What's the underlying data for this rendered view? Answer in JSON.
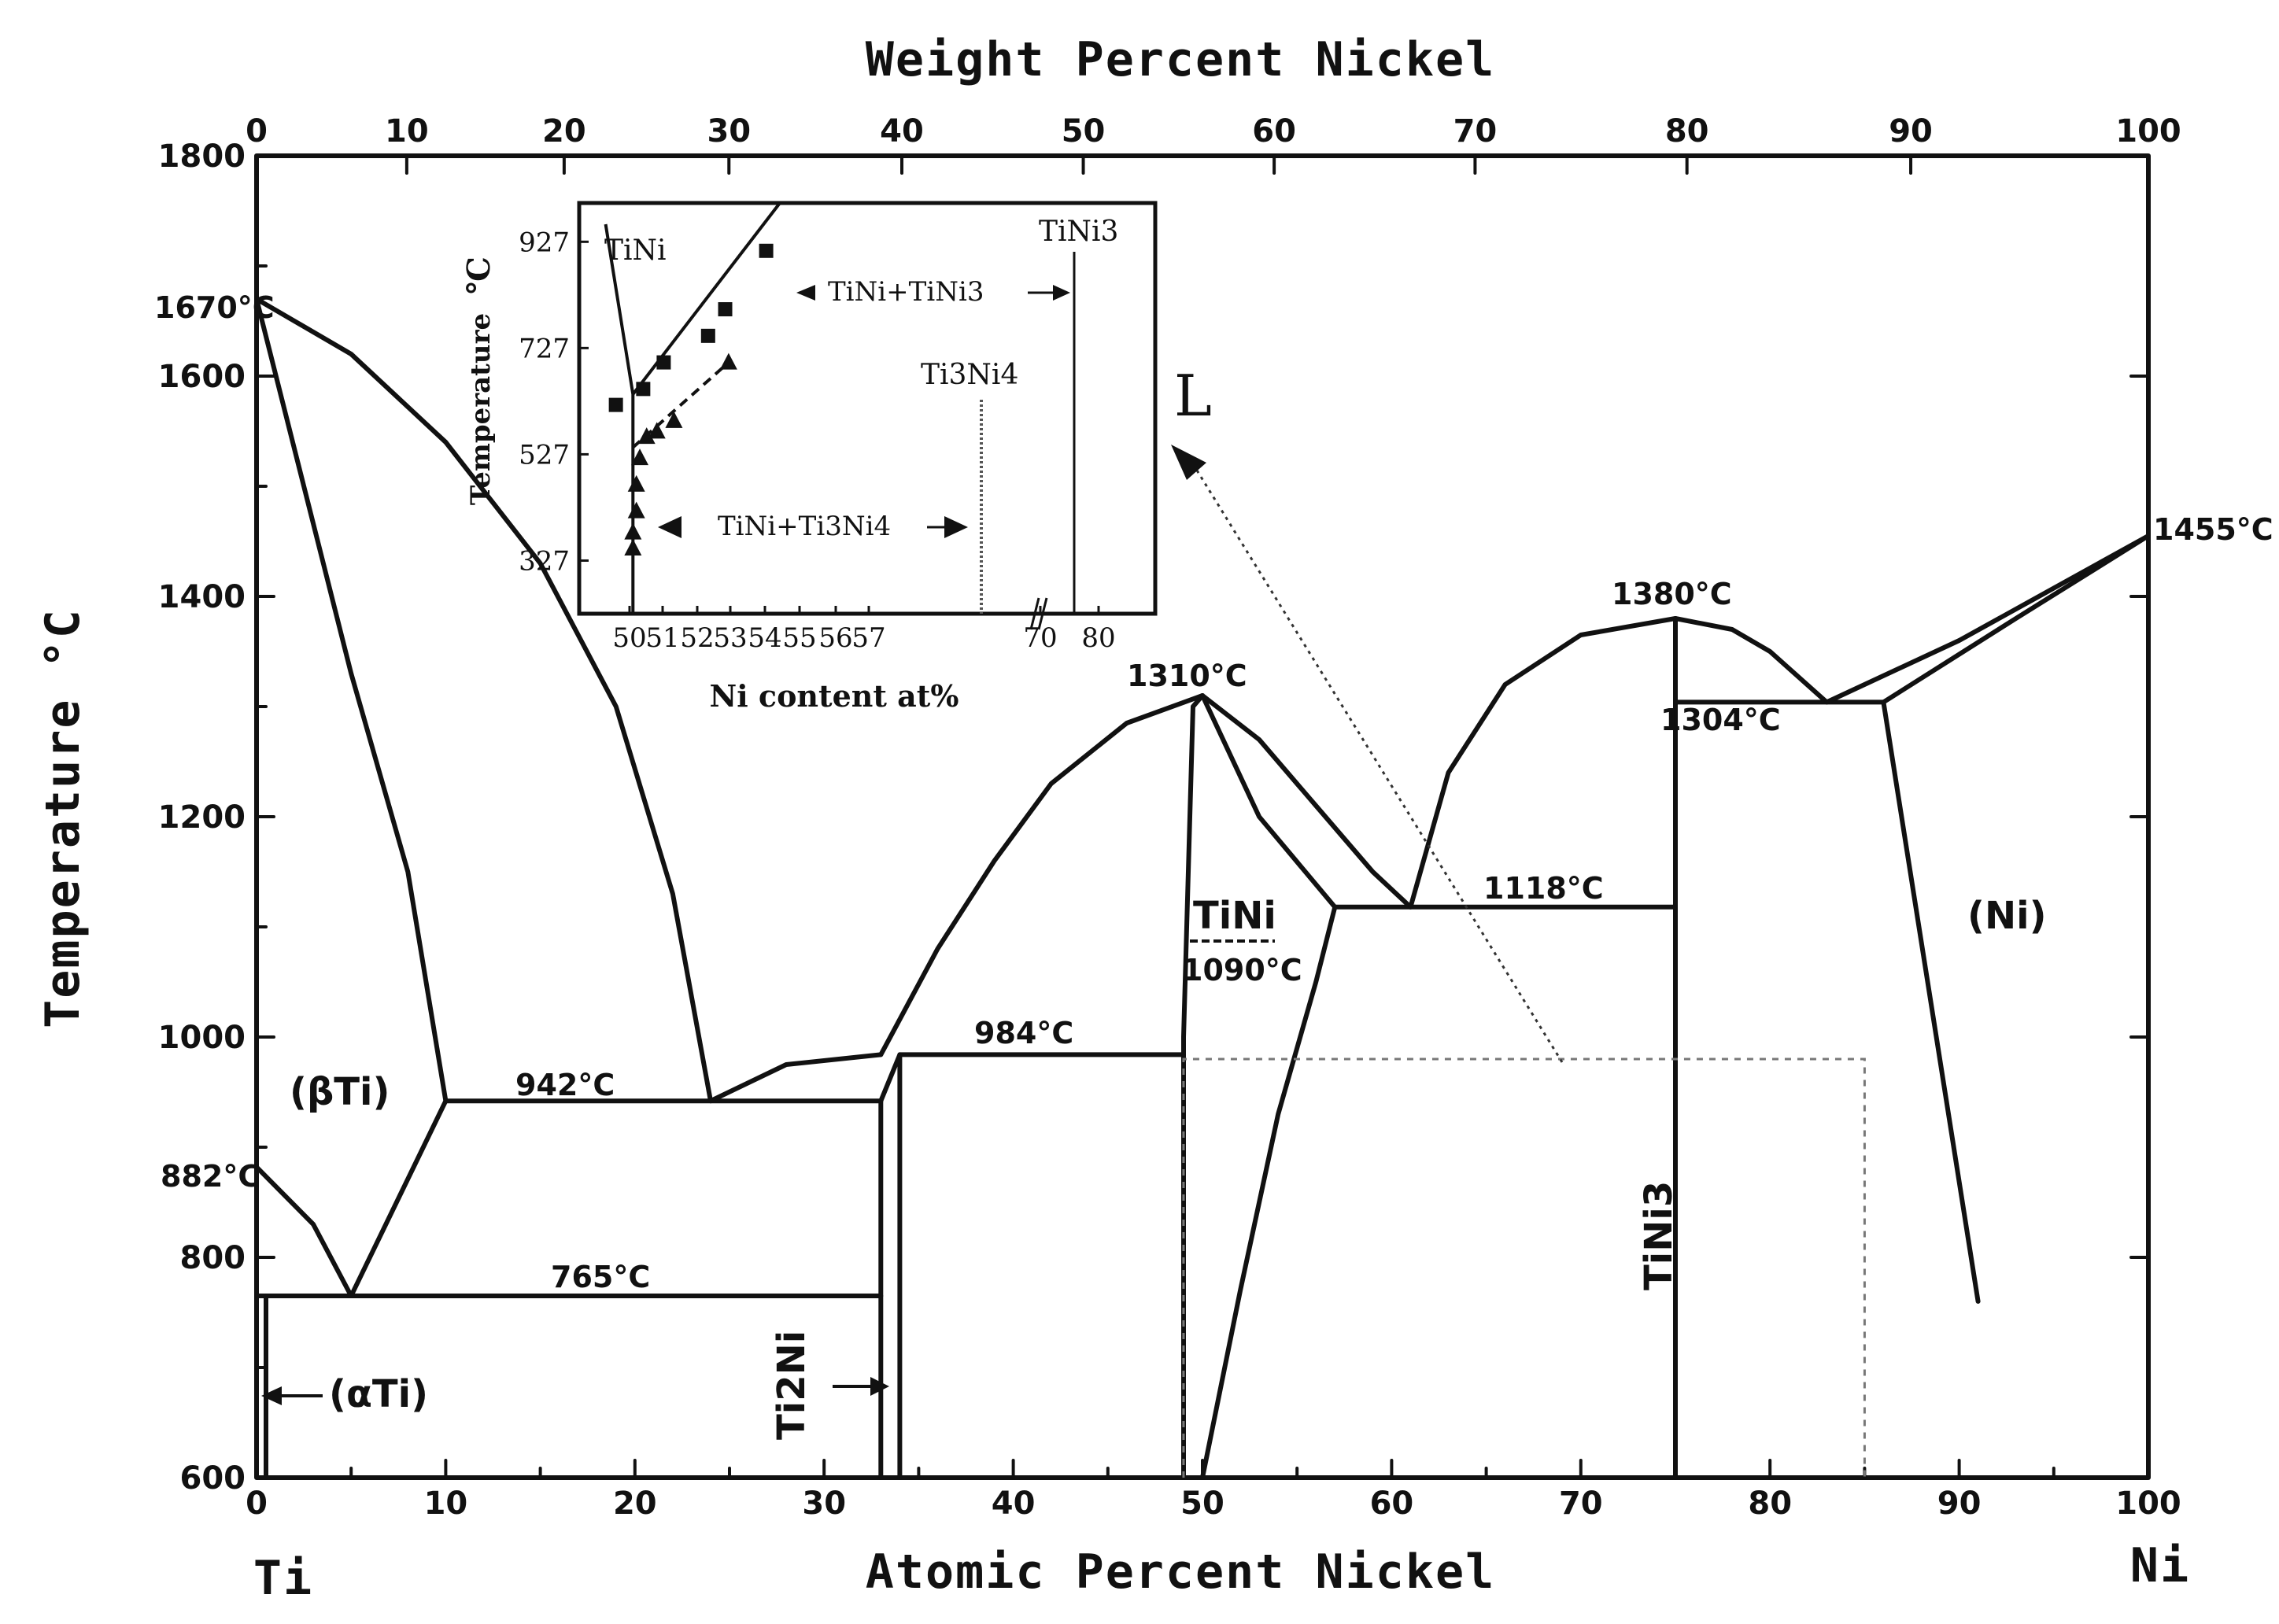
{
  "chart_data": {
    "type": "phase-diagram",
    "title": "",
    "xlabel": "Atomic Percent Nickel",
    "x2label": "Weight Percent Nickel",
    "ylabel": "Temperature °C",
    "xlim": [
      0,
      100
    ],
    "ylim": [
      600,
      1800
    ],
    "xticks": [
      0,
      10,
      20,
      30,
      40,
      50,
      60,
      70,
      80,
      90,
      100
    ],
    "yticks": [
      600,
      800,
      1000,
      1200,
      1400,
      1600,
      1800
    ],
    "x2ticks": [
      0,
      10,
      20,
      30,
      40,
      50,
      60,
      70,
      80,
      90,
      100
    ],
    "x2_at_pct": [
      0,
      7.94,
      16.26,
      24.97,
      34.11,
      43.7,
      53.79,
      64.41,
      75.61,
      87.44,
      100
    ],
    "corner_left": "Ti",
    "corner_right": "Ni",
    "curves": [
      {
        "name": "liquidus-ti-side",
        "points": [
          [
            0,
            1670
          ],
          [
            5,
            1620
          ],
          [
            10,
            1540
          ],
          [
            15,
            1430
          ],
          [
            19,
            1300
          ],
          [
            22,
            1130
          ],
          [
            24,
            942
          ]
        ]
      },
      {
        "name": "solidus-beta-ti",
        "points": [
          [
            0,
            1670
          ],
          [
            5,
            1330
          ],
          [
            8,
            1150
          ],
          [
            10,
            942
          ]
        ]
      },
      {
        "name": "beta-transus-left",
        "points": [
          [
            0,
            882
          ],
          [
            3,
            830
          ],
          [
            5,
            765
          ]
        ]
      },
      {
        "name": "beta-transus-right",
        "points": [
          [
            5,
            765
          ],
          [
            10,
            942
          ]
        ]
      },
      {
        "name": "eutectic-942",
        "points": [
          [
            10,
            942
          ],
          [
            33,
            942
          ]
        ]
      },
      {
        "name": "eutectoid-765",
        "points": [
          [
            0,
            765
          ],
          [
            33,
            765
          ]
        ]
      },
      {
        "name": "alpha-ti-solvus",
        "points": [
          [
            0.5,
            600
          ],
          [
            0.5,
            765
          ]
        ]
      },
      {
        "name": "liquidus-942-984",
        "points": [
          [
            24,
            942
          ],
          [
            28,
            975
          ],
          [
            33,
            984
          ]
        ]
      },
      {
        "name": "liquidus-tini-left",
        "points": [
          [
            33,
            984
          ],
          [
            36,
            1080
          ],
          [
            39,
            1160
          ],
          [
            42,
            1230
          ],
          [
            46,
            1285
          ],
          [
            50,
            1310
          ]
        ]
      },
      {
        "name": "ti2ni-left",
        "points": [
          [
            33,
            600
          ],
          [
            33,
            942
          ]
        ]
      },
      {
        "name": "ti2ni-peritectic",
        "points": [
          [
            33,
            942
          ],
          [
            34,
            984
          ]
        ]
      },
      {
        "name": "ti2ni-right",
        "points": [
          [
            34,
            600
          ],
          [
            34,
            984
          ]
        ]
      },
      {
        "name": "peritectic-984",
        "points": [
          [
            34,
            984
          ],
          [
            49,
            984
          ]
        ]
      },
      {
        "name": "tini-solidus-left",
        "points": [
          [
            49,
            600
          ],
          [
            49,
            1000
          ],
          [
            49.5,
            1300
          ],
          [
            50,
            1310
          ]
        ]
      },
      {
        "name": "tini-solidus-right",
        "points": [
          [
            50,
            1310
          ],
          [
            53,
            1200
          ],
          [
            57,
            1118
          ]
        ]
      },
      {
        "name": "tini-solvus-right",
        "points": [
          [
            50,
            600
          ],
          [
            52,
            770
          ],
          [
            54,
            930
          ],
          [
            56,
            1050
          ],
          [
            57,
            1118
          ]
        ]
      },
      {
        "name": "liquidus-tini-right",
        "points": [
          [
            50,
            1310
          ],
          [
            53,
            1270
          ],
          [
            56,
            1210
          ],
          [
            59,
            1150
          ],
          [
            61,
            1118
          ]
        ]
      },
      {
        "name": "eutectic-1118",
        "points": [
          [
            57,
            1118
          ],
          [
            75,
            1118
          ]
        ]
      },
      {
        "name": "liquidus-tini3-left",
        "points": [
          [
            61,
            1118
          ],
          [
            63,
            1240
          ],
          [
            66,
            1320
          ],
          [
            70,
            1365
          ],
          [
            75,
            1380
          ]
        ]
      },
      {
        "name": "tini3-line",
        "points": [
          [
            75,
            600
          ],
          [
            75,
            1380
          ]
        ]
      },
      {
        "name": "liquidus-tini3-right",
        "points": [
          [
            75,
            1380
          ],
          [
            78,
            1370
          ],
          [
            80,
            1350
          ],
          [
            83,
            1304
          ]
        ]
      },
      {
        "name": "eutectic-1304",
        "points": [
          [
            75,
            1304
          ],
          [
            86,
            1304
          ]
        ]
      },
      {
        "name": "liquidus-ni",
        "points": [
          [
            83,
            1304
          ],
          [
            90,
            1360
          ],
          [
            100,
            1455
          ]
        ]
      },
      {
        "name": "solidus-ni",
        "points": [
          [
            86,
            1304
          ],
          [
            93,
            1380
          ],
          [
            100,
            1455
          ]
        ]
      },
      {
        "name": "ni-solvus",
        "points": [
          [
            86,
            1304
          ],
          [
            91,
            760
          ]
        ]
      }
    ],
    "dashed_box": {
      "x": [
        49,
        85
      ],
      "y_top": 980
    },
    "annotations": {
      "t1670": "1670°C",
      "t882": "882°C",
      "t942": "942°C",
      "t765": "765°C",
      "t984": "984°C",
      "t1310": "1310°C",
      "t1090": "1090°C",
      "t1118": "1118°C",
      "t1380": "1380°C",
      "t1304": "1304°C",
      "t1455": "1455°C"
    },
    "phases": {
      "beta_ti": "(βTi)",
      "alpha_ti": "(αTi)",
      "ti2ni": "Ti2Ni",
      "tini": "TiNi",
      "tini3": "TiNi3",
      "ni": "(Ni)",
      "liquid": "L"
    },
    "inset": {
      "type": "scatter",
      "xlabel": "Ni content  at%",
      "ylabel": "Temperature",
      "yunit": "℃",
      "xticks": [
        "50",
        "51",
        "52",
        "53",
        "54",
        "55",
        "56",
        "57",
        "70",
        "80"
      ],
      "yticks": [
        327,
        527,
        727,
        927
      ],
      "ylim": [
        227,
        1000
      ],
      "labels": {
        "tini": "TiNi",
        "tini3": "TiNi3",
        "ti3ni4": "Ti3Ni4",
        "region_tini_tini3": "TiNi+TiNi3",
        "region_tini_ti3ni4": "TiNi+Ti3Ni4"
      },
      "series": [
        {
          "name": "squares",
          "marker": "square",
          "points": [
            [
              49.6,
              620
            ],
            [
              50.4,
              650
            ],
            [
              51,
              700
            ],
            [
              52.3,
              750
            ],
            [
              52.8,
              800
            ],
            [
              54,
              910
            ]
          ]
        },
        {
          "name": "triangles",
          "marker": "triangle",
          "points": [
            [
              50.1,
              350
            ],
            [
              50.1,
              380
            ],
            [
              50.2,
              420
            ],
            [
              50.2,
              470
            ],
            [
              50.3,
              520
            ],
            [
              50.5,
              560
            ],
            [
              50.8,
              570
            ],
            [
              51.3,
              590
            ],
            [
              52.9,
              700
            ]
          ]
        }
      ],
      "lines": [
        {
          "name": "tini-left-boundary",
          "points": [
            [
              49.3,
              960
            ],
            [
              50.1,
              640
            ],
            [
              50.1,
              227
            ]
          ]
        },
        {
          "name": "tini3-solvus",
          "points": [
            [
              50.1,
              640
            ],
            [
              54.4,
              1000
            ]
          ]
        },
        {
          "name": "ti3ni4-solvus",
          "points": [
            [
              50.1,
              540
            ],
            [
              50.8,
              580
            ],
            [
              52.9,
              700
            ]
          ]
        }
      ]
    }
  }
}
